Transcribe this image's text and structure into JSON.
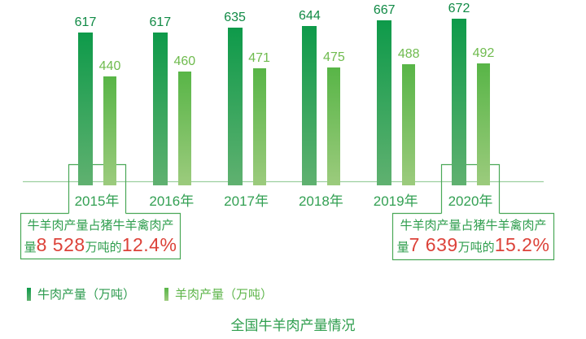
{
  "title": "全国牛羊肉产量情况",
  "chart_data": {
    "type": "bar",
    "categories": [
      "2015年",
      "2016年",
      "2017年",
      "2018年",
      "2019年",
      "2020年"
    ],
    "series": [
      {
        "name": "牛肉产量（万吨）",
        "values": [
          617,
          617,
          635,
          644,
          667,
          672
        ]
      },
      {
        "name": "羊肉产量（万吨）",
        "values": [
          440,
          460,
          471,
          475,
          488,
          492
        ]
      }
    ],
    "ylim": [
      0,
      700
    ],
    "grid": false,
    "value_labels": true,
    "legend_position": "bottom-left"
  },
  "legend": [
    {
      "label": "牛肉产量（万吨）"
    },
    {
      "label": "羊肉产量（万吨）"
    }
  ],
  "callouts": [
    {
      "year": "2015年",
      "line1": "牛羊肉产量占猪牛羊禽肉产",
      "prefix": "量",
      "value": "8 528",
      "mid": "万吨的",
      "pct": "12.4%"
    },
    {
      "year": "2020年",
      "line1": "牛羊肉产量占猪牛羊禽肉产",
      "prefix": "量",
      "value": "7 639",
      "mid": "万吨的",
      "pct": "15.2%"
    }
  ],
  "colors": {
    "beef_top": "#0e9a4a",
    "beef_bottom": "#60b170",
    "sheep_top": "#58b547",
    "sheep_bottom": "#9ccb7d",
    "beef_label": "#108a45",
    "sheep_label": "#6fbb4e",
    "beef_legend_text": "#2c9a4e",
    "sheep_legend_text": "#5eb54a",
    "year_label": "#33a053",
    "axis": "#9ccf9f",
    "callout_border": "#4aa857",
    "callout_text_green": "#2f9e4e",
    "callout_number_red": "#dc4239",
    "title_green": "#2f9e4e"
  }
}
